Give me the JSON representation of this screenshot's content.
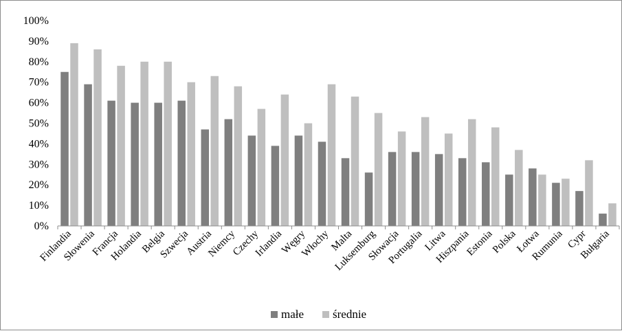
{
  "chart_data": {
    "type": "bar",
    "categories": [
      "Finlandia",
      "Słowenia",
      "Francja",
      "Holandia",
      "Belgia",
      "Szwecja",
      "Austria",
      "Niemcy",
      "Czechy",
      "Irlandia",
      "Węgry",
      "Włochy",
      "Malta",
      "Luksemburg",
      "Słowacja",
      "Portugalia",
      "Litwa",
      "Hiszpania",
      "Estonia",
      "Polska",
      "Łotwa",
      "Rumunia",
      "Cypr",
      "Bułgaria"
    ],
    "series": [
      {
        "name": "małe",
        "color": "#7f7f7f",
        "values": [
          75,
          69,
          61,
          60,
          60,
          61,
          47,
          52,
          44,
          39,
          44,
          41,
          33,
          26,
          36,
          36,
          35,
          33,
          31,
          25,
          28,
          21,
          17,
          6
        ]
      },
      {
        "name": "średnie",
        "color": "#bfbfbf",
        "values": [
          89,
          86,
          78,
          80,
          80,
          70,
          73,
          68,
          57,
          64,
          50,
          69,
          63,
          55,
          46,
          53,
          45,
          52,
          48,
          37,
          25,
          23,
          32,
          11
        ]
      }
    ],
    "yticks": [
      "0%",
      "10%",
      "20%",
      "30%",
      "40%",
      "50%",
      "60%",
      "70%",
      "80%",
      "90%",
      "100%"
    ],
    "ylim": [
      0,
      100
    ],
    "grid": false,
    "legend_position": "bottom"
  }
}
